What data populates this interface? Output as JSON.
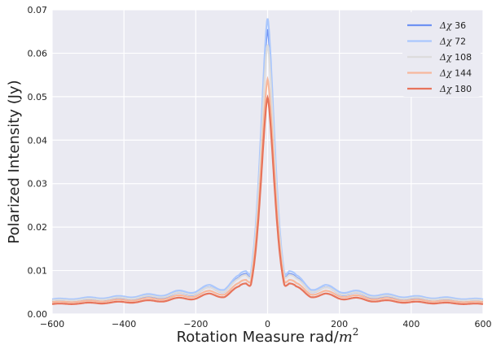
{
  "chart_data": {
    "type": "line",
    "title": "",
    "xlabel": "Rotation Measure rad/",
    "xlabel_math": "m",
    "xlabel_sup": "2",
    "ylabel": "Polarized Intensity (Jy)",
    "xlim": [
      -600,
      600
    ],
    "ylim": [
      0,
      0.07
    ],
    "x_ticks": [
      -600,
      -400,
      -200,
      0,
      200,
      400,
      600
    ],
    "x_tick_labels": [
      "−600",
      "−400",
      "−200",
      "0",
      "200",
      "400",
      "600"
    ],
    "y_ticks": [
      0,
      0.01,
      0.02,
      0.03,
      0.04,
      0.05,
      0.06,
      0.07
    ],
    "y_tick_labels": [
      "0.00",
      "0.01",
      "0.02",
      "0.03",
      "0.04",
      "0.05",
      "0.06",
      "0.07"
    ],
    "grid": true,
    "legend_position": "top-right",
    "background": "#eaeaf2",
    "series": [
      {
        "name": "Δχ 36",
        "legend_symbol": "Δχ",
        "legend_value": "36",
        "color": "#6f92f3",
        "peak": 0.0655,
        "floor": 0.0022
      },
      {
        "name": "Δχ 72",
        "legend_symbol": "Δχ",
        "legend_value": "72",
        "color": "#aac7fd",
        "peak": 0.068,
        "floor": 0.0026
      },
      {
        "name": "Δχ 108",
        "legend_symbol": "Δχ",
        "legend_value": "108",
        "color": "#dddcdc",
        "peak": 0.062,
        "floor": 0.0024
      },
      {
        "name": "Δχ 144",
        "legend_symbol": "Δχ",
        "legend_value": "144",
        "color": "#f7b89c",
        "peak": 0.054,
        "floor": 0.0021
      },
      {
        "name": "Δχ 180",
        "legend_symbol": "Δχ",
        "legend_value": "180",
        "color": "#e7745b",
        "peak": 0.0498,
        "floor": 0.0017
      }
    ],
    "x": [
      -600,
      -560,
      -520,
      -480,
      -440,
      -400,
      -360,
      -320,
      -280,
      -240,
      -200,
      -160,
      -120,
      -100,
      -80,
      -60,
      -50,
      -40,
      -30,
      -20,
      -10,
      0,
      10,
      20,
      30,
      40,
      50,
      60,
      80,
      100,
      120,
      160,
      200,
      240,
      280,
      320,
      360,
      400,
      440,
      480,
      520,
      560,
      600
    ],
    "shape": [
      0.033,
      0.044,
      0.044,
      0.055,
      0.055,
      0.066,
      0.071,
      0.082,
      0.093,
      0.115,
      0.132,
      0.165,
      0.165,
      0.21,
      0.25,
      0.35,
      0.35,
      0.43,
      0.55,
      0.72,
      0.9,
      1.0,
      0.9,
      0.72,
      0.55,
      0.43,
      0.35,
      0.35,
      0.25,
      0.21,
      0.165,
      0.165,
      0.132,
      0.115,
      0.093,
      0.082,
      0.071,
      0.066,
      0.055,
      0.055,
      0.044,
      0.044,
      0.033
    ]
  }
}
